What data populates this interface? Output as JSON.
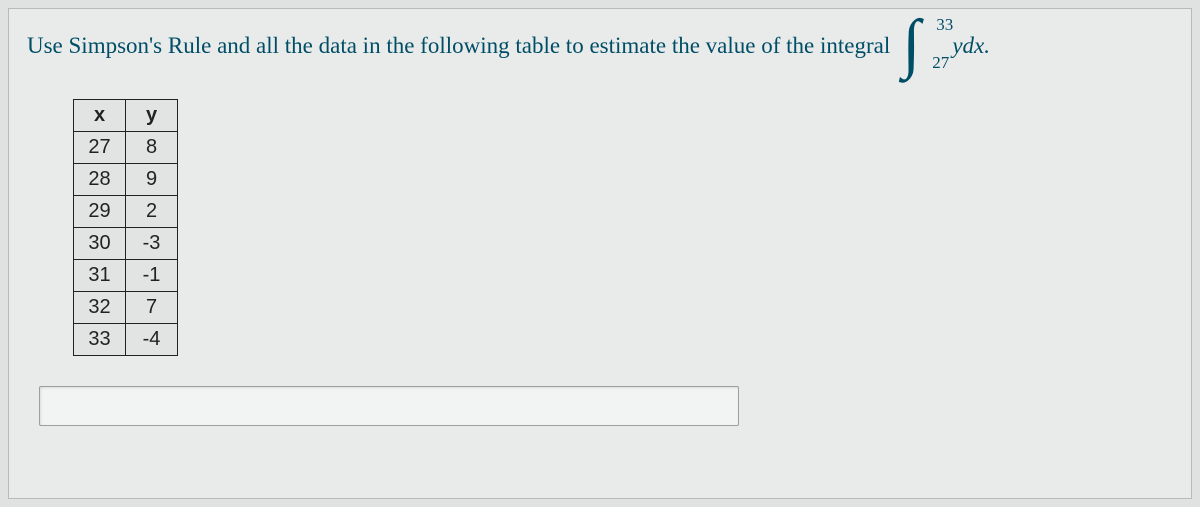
{
  "question": {
    "text": "Use Simpson's Rule and all the data in the following table to estimate the value of the integral",
    "upper_bound": "33",
    "lower_bound": "27",
    "integrand": "ydx."
  },
  "table": {
    "columns": [
      "x",
      "y"
    ],
    "rows": [
      [
        "27",
        "8"
      ],
      [
        "28",
        "9"
      ],
      [
        "29",
        "2"
      ],
      [
        "30",
        "-3"
      ],
      [
        "31",
        "-1"
      ],
      [
        "32",
        "7"
      ],
      [
        "33",
        "-4"
      ]
    ],
    "border_color": "#222222",
    "cell_bg": "#e1e4e3",
    "font_size": 20
  },
  "answer_input": {
    "value": "",
    "placeholder": ""
  },
  "colors": {
    "page_bg": "#dfe2e1",
    "panel_bg": "#e8ebea",
    "panel_border": "#b8bbb9",
    "question_text": "#004d66",
    "input_bg": "#f2f4f3",
    "input_border": "#9aa09e"
  }
}
